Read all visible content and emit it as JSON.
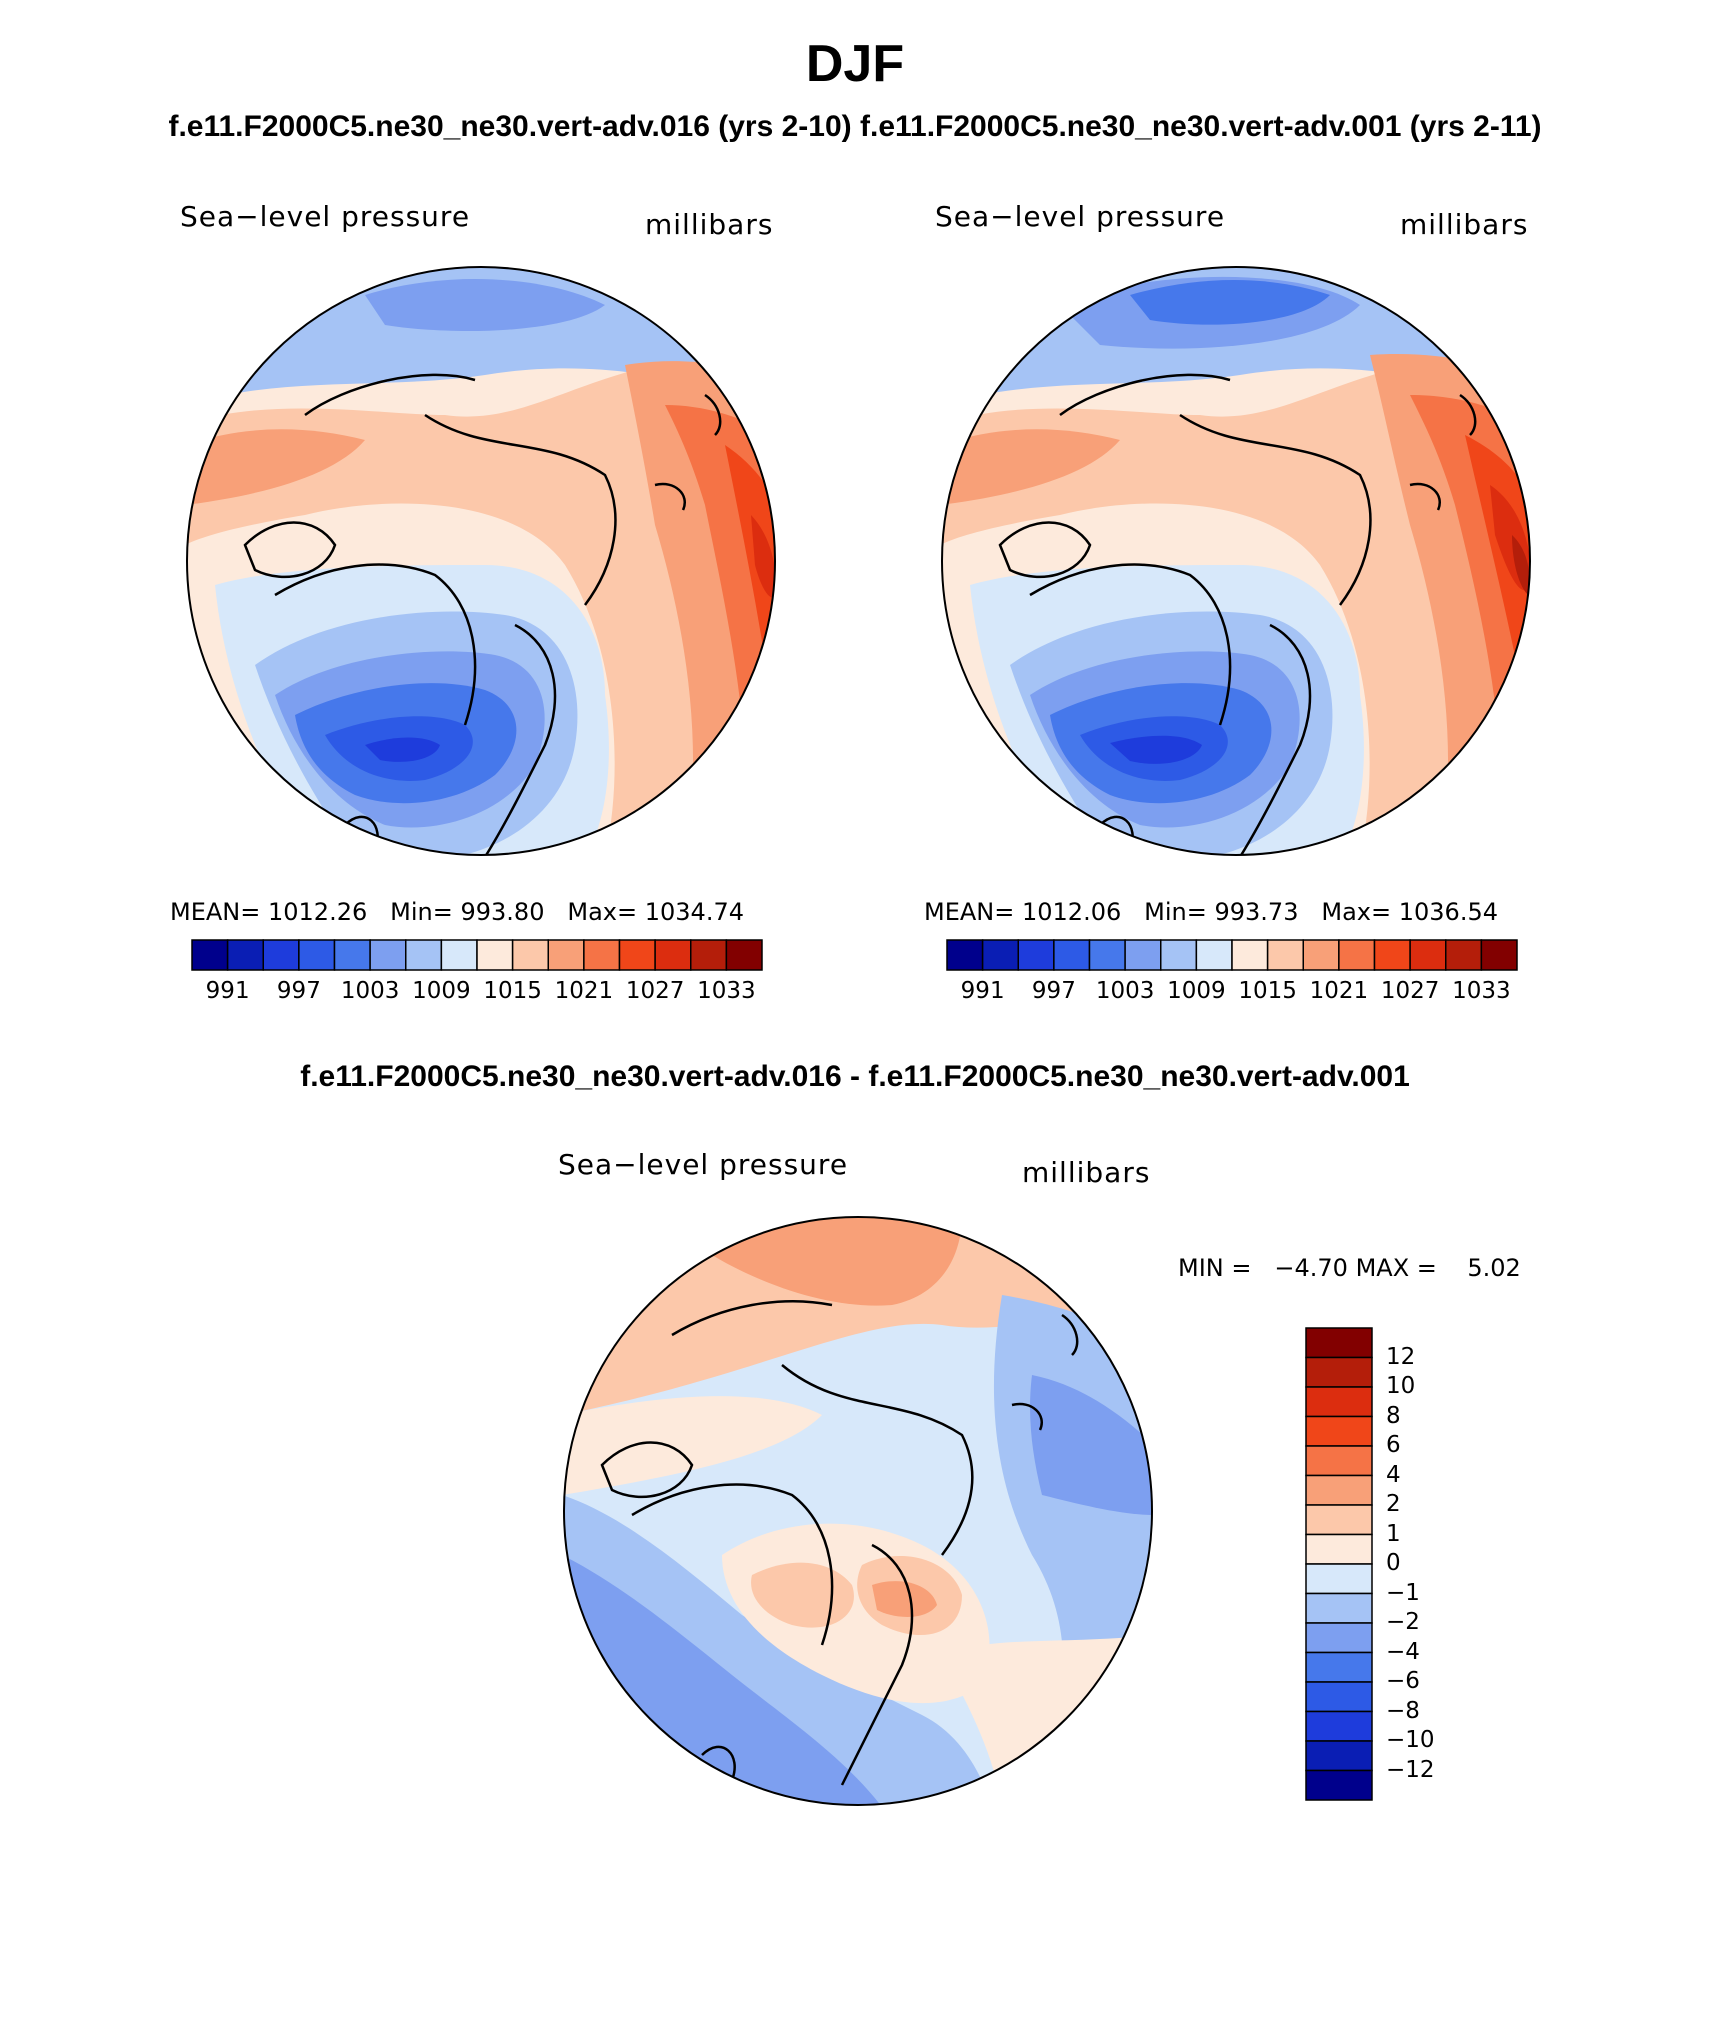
{
  "figure": {
    "season": "DJF",
    "case_titles": "f.e11.F2000C5.ne30_ne30.vert-adv.016 (yrs 2-10)  f.e11.F2000C5.ne30_ne30.vert-adv.001 (yrs 2-11)",
    "diff_title": "f.e11.F2000C5.ne30_ne30.vert-adv.016 - f.e11.F2000C5.ne30_ne30.vert-adv.001"
  },
  "panels": [
    {
      "variable": "Sea−level pressure",
      "units": "millibars",
      "stats": {
        "mean_label": "MEAN=",
        "mean": "1012.26",
        "min_label": "Min=",
        "min": "993.80",
        "max_label": "Max=",
        "max": "1034.74"
      }
    },
    {
      "variable": "Sea−level pressure",
      "units": "millibars",
      "stats": {
        "mean_label": "MEAN=",
        "mean": "1012.06",
        "min_label": "Min=",
        "min": "993.73",
        "max_label": "Max=",
        "max": "1036.54"
      }
    },
    {
      "variable": "Sea−level pressure",
      "units": "millibars",
      "stats": {
        "min_label": "MIN =",
        "min": "−4.70",
        "max_label": "MAX =",
        "max": "5.02"
      }
    }
  ],
  "legend_abs": {
    "tick_labels": [
      "991",
      "997",
      "1003",
      "1009",
      "1015",
      "1021",
      "1027",
      "1033"
    ],
    "colors": [
      "#00008c",
      "#0a1eb4",
      "#1e3cdc",
      "#2d5ae6",
      "#4678eb",
      "#7d9ff0",
      "#a5c3f5",
      "#d7e8fa",
      "#fdeadc",
      "#fcc8aa",
      "#f8a078",
      "#f57346",
      "#f04619",
      "#dc2d0f",
      "#b41e0a",
      "#820000"
    ]
  },
  "legend_diff": {
    "tick_labels": [
      "12",
      "10",
      "8",
      "6",
      "4",
      "2",
      "1",
      "0",
      "−1",
      "−2",
      "−4",
      "−6",
      "−8",
      "−10",
      "−12"
    ],
    "colors": [
      "#820000",
      "#b41e0a",
      "#dc2d0f",
      "#f04619",
      "#f57346",
      "#f8a078",
      "#fcc8aa",
      "#fdeadc",
      "#d7e8fa",
      "#a5c3f5",
      "#7d9ff0",
      "#4678eb",
      "#2d5ae6",
      "#1e3cdc",
      "#0a1eb4",
      "#00008c"
    ]
  }
}
